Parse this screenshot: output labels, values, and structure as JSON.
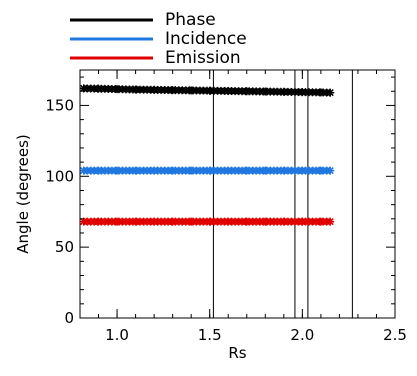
{
  "chart_data": {
    "type": "scatter",
    "xlabel": "Rs",
    "ylabel": "Angle (degrees)",
    "xlim": [
      0.8,
      2.5
    ],
    "ylim": [
      0,
      175
    ],
    "x_ticks": [
      1.0,
      1.5,
      2.0,
      2.5
    ],
    "x_tick_labels": [
      "1.0",
      "1.5",
      "2.0",
      "2.5"
    ],
    "y_ticks": [
      0,
      50,
      100,
      150
    ],
    "y_tick_labels": [
      "0",
      "50",
      "100",
      "150"
    ],
    "grid": false,
    "legend_position": "top",
    "marker": "asterisk",
    "x": [
      0.82,
      0.9,
      1.0,
      1.1,
      1.2,
      1.3,
      1.4,
      1.5,
      1.6,
      1.7,
      1.8,
      1.9,
      2.0,
      2.1,
      2.15
    ],
    "series": [
      {
        "name": "Phase",
        "color": "#000000",
        "values": [
          162,
          161.8,
          161.5,
          161.2,
          161,
          160.8,
          160.6,
          160.4,
          160.2,
          160,
          159.8,
          159.6,
          159.4,
          159.2,
          159
        ]
      },
      {
        "name": "Incidence",
        "color": "#1f77e0",
        "values": [
          104,
          104,
          104,
          104,
          104,
          104,
          104,
          104,
          104,
          104,
          104,
          104,
          104,
          104,
          104
        ]
      },
      {
        "name": "Emission",
        "color": "#e00000",
        "values": [
          68,
          68,
          68,
          68,
          68,
          68,
          68,
          68,
          68,
          68,
          68,
          68,
          68,
          68,
          68
        ]
      }
    ],
    "vertical_lines": [
      1.52,
      1.96,
      2.03,
      2.27
    ]
  }
}
